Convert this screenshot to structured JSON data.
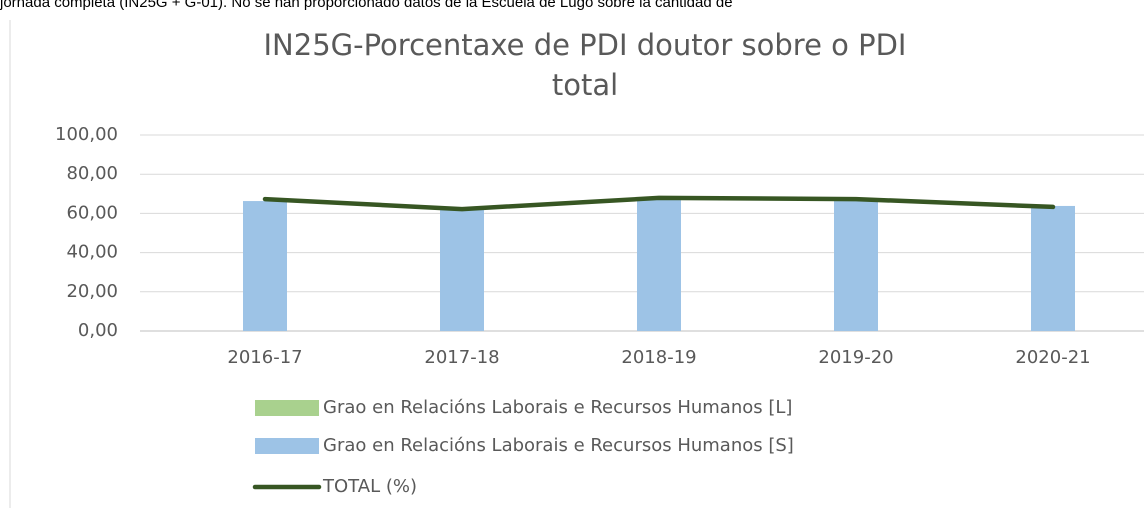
{
  "document_text": "jornada completa (IN25G + G-01). No se han proporcionado datos de la Escuela de Lugo sobre la cantidad de",
  "chart_data": {
    "type": "bar",
    "title": "IN25G-Porcentaxe de PDI doutor sobre o PDI total",
    "categories": [
      "2016-17",
      "2017-18",
      "2018-19",
      "2019-20",
      "2020-21"
    ],
    "series": [
      {
        "name": "Grao en Relacións Laborais e Recursos Humanos [L]",
        "color": "#a9d18e",
        "type": "bar",
        "values": [
          null,
          null,
          null,
          null,
          null
        ]
      },
      {
        "name": "Grao en Relacións Laborais e Recursos Humanos [S]",
        "color": "#9dc3e6",
        "type": "bar",
        "values": [
          66.3,
          62.2,
          67.9,
          66.3,
          63.8
        ]
      },
      {
        "name": "TOTAL (%)",
        "color": "#375623",
        "type": "line",
        "values": [
          67.3,
          62.2,
          67.9,
          67.3,
          63.3
        ]
      }
    ],
    "ylim": [
      0,
      100
    ],
    "yticks": [
      {
        "value": 0,
        "label": "0,00"
      },
      {
        "value": 20,
        "label": "20,00"
      },
      {
        "value": 40,
        "label": "40,00"
      },
      {
        "value": 60,
        "label": "60,00"
      },
      {
        "value": 80,
        "label": "80,00"
      },
      {
        "value": 100,
        "label": "100,00"
      }
    ],
    "grid": true
  }
}
